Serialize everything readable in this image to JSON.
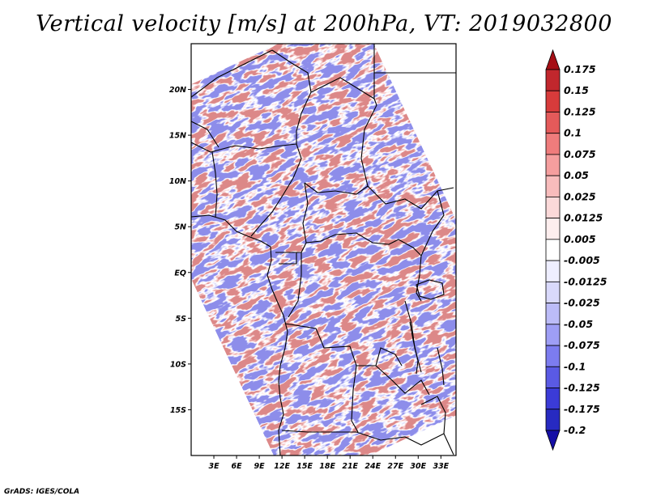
{
  "chart_data": {
    "type": "heatmap",
    "title": "Vertical velocity [m/s] at 200hPa, VT: 2019032800",
    "variable": "Vertical velocity",
    "units": "m/s",
    "level": "200hPa",
    "valid_time": "2019032800",
    "x_tick_labels": [
      "3E",
      "6E",
      "9E",
      "12E",
      "15E",
      "18E",
      "21E",
      "24E",
      "27E",
      "30E",
      "33E"
    ],
    "x_tick_values": [
      3,
      6,
      9,
      12,
      15,
      18,
      21,
      24,
      27,
      30,
      33
    ],
    "y_tick_labels": [
      "20N",
      "15N",
      "10N",
      "5N",
      "EQ",
      "5S",
      "10S",
      "15S"
    ],
    "y_tick_values": [
      20,
      15,
      10,
      5,
      0,
      -5,
      -10,
      -15
    ],
    "lon_range": [
      0,
      35
    ],
    "lat_range": [
      -20,
      25
    ],
    "colorbar": {
      "labels": [
        "0.175",
        "0.15",
        "0.125",
        "0.1",
        "0.075",
        "0.05",
        "0.025",
        "0.0125",
        "0.005",
        "-0.005",
        "-0.0125",
        "-0.025",
        "-0.05",
        "-0.075",
        "-0.1",
        "-0.125",
        "-0.175",
        "-0.2"
      ],
      "colors": [
        "#a50f15",
        "#c1272d",
        "#d73b3b",
        "#e45a5a",
        "#ef7c7c",
        "#f59e9e",
        "#f8bcbc",
        "#fbd9d9",
        "#fdeeee",
        "#ffffff",
        "#eeeeff",
        "#d9d9fb",
        "#bcbcf8",
        "#9e9ef5",
        "#7c7cef",
        "#5a5ae4",
        "#3b3bd7",
        "#272ac1",
        "#150fa5"
      ]
    }
  },
  "credit": "GrADS: IGES/COLA"
}
